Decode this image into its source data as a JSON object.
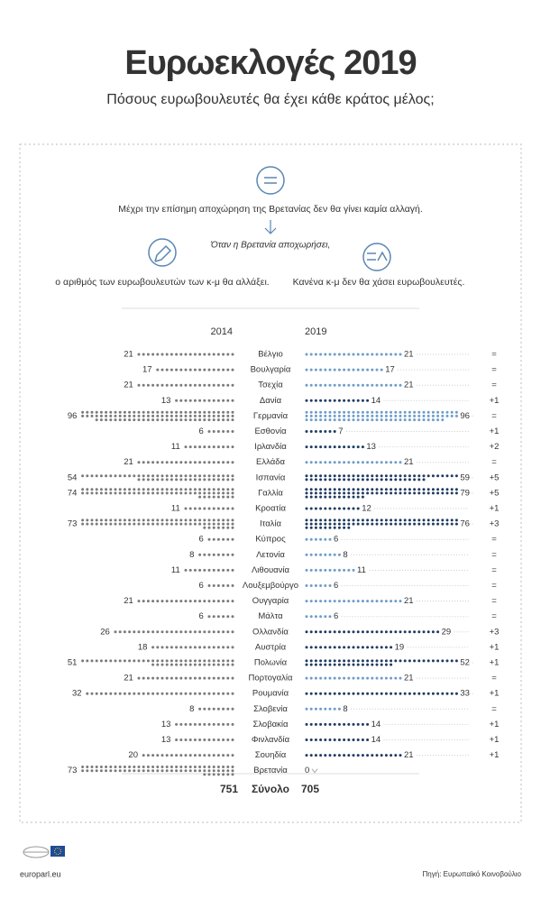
{
  "chart_data": {
    "type": "dotplot",
    "title": "Ευρωεκλογές 2019",
    "subtitle": "Πόσους ευρωβουλευτές θα έχει κάθε κράτος μέλος;",
    "notes": [
      "Μέχρι την επίσημη  αποχώρηση της Βρετανίας δεν θα γίνει καμία αλλαγή.",
      "Όταν η Βρετανία αποχωρήσει,",
      "ο αριθμός των ευρωβουλευτών των κ-μ θα αλλάξει.",
      "Κανένα κ-μ δεν θα χάσει ευρωβουλευτές."
    ],
    "categories": [
      "Βέλγιο",
      "Βουλγαρία",
      "Τσεχία",
      "Δανία",
      "Γερμανία",
      "Εσθονία",
      "Ιρλανδία",
      "Ελλάδα",
      "Ισπανία",
      "Γαλλία",
      "Κροατία",
      "Ιταλία",
      "Κύπρος",
      "Λετονία",
      "Λιθουανία",
      "Λουξεμβούργο",
      "Ουγγαρία",
      "Μάλτα",
      "Ολλανδία",
      "Αυστρία",
      "Πολωνία",
      "Πορτογαλία",
      "Ρουμανία",
      "Σλοβενία",
      "Σλοβακία",
      "Φινλανδία",
      "Σουηδία",
      "Βρετανία"
    ],
    "series": [
      {
        "name": "2014",
        "color": "#7a7a7a",
        "values": [
          21,
          17,
          21,
          13,
          96,
          6,
          11,
          21,
          54,
          74,
          11,
          73,
          6,
          8,
          11,
          6,
          21,
          6,
          26,
          18,
          51,
          21,
          32,
          8,
          13,
          13,
          20,
          73
        ],
        "total": 751
      },
      {
        "name": "2019",
        "color": "#6e9dc9",
        "increase_color": "#1f3b60",
        "values": [
          21,
          17,
          21,
          14,
          96,
          7,
          13,
          21,
          59,
          79,
          12,
          76,
          6,
          8,
          11,
          6,
          21,
          6,
          29,
          19,
          52,
          21,
          33,
          8,
          14,
          14,
          21,
          0
        ],
        "total": 705
      }
    ],
    "change_labels": [
      "=",
      "=",
      "=",
      "+1",
      "=",
      "+1",
      "+2",
      "=",
      "+5",
      "+5",
      "+1",
      "+3",
      "=",
      "=",
      "=",
      "=",
      "=",
      "=",
      "+3",
      "+1",
      "+1",
      "=",
      "+1",
      "=",
      "+1",
      "+1",
      "+1",
      null
    ],
    "total_label": "Σύνολο",
    "footer": {
      "site": "europarl.eu",
      "source": "Πηγή: Ευρωπαϊκό Κοινοβούλιο"
    }
  }
}
